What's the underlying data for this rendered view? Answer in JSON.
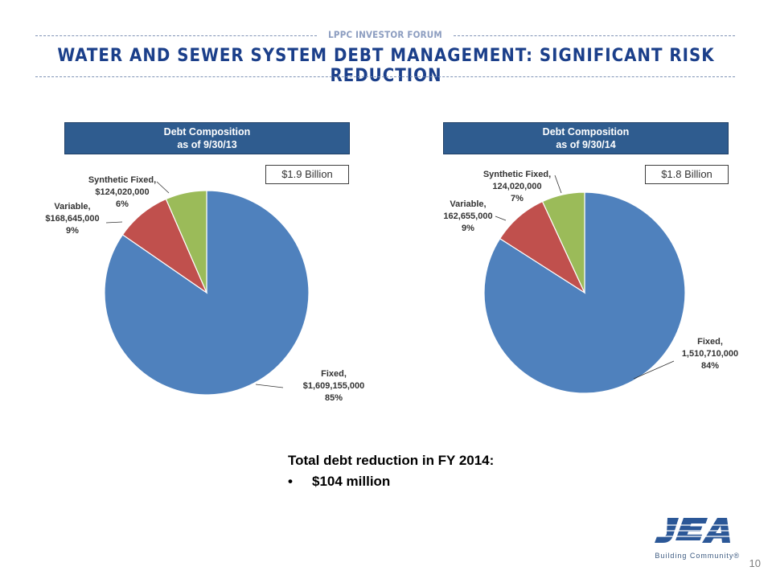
{
  "header": {
    "forum_label": "LPPC INVESTOR FORUM",
    "title": "WATER AND SEWER SYSTEM DEBT MANAGEMENT:  SIGNIFICANT RISK REDUCTION"
  },
  "chart_data": [
    {
      "type": "pie",
      "title_line1": "Debt Composition",
      "title_line2": "as of 9/30/13",
      "total_label": "$1.9 Billion",
      "start_angle_deg": 0,
      "colors": [
        "#4f81bd",
        "#c0504d",
        "#9bbb59"
      ],
      "slices": [
        {
          "name": "Fixed,",
          "value_label": "$1,609,155,000",
          "percent_label": "85%",
          "value": 1609155000
        },
        {
          "name": "Variable,",
          "value_label": "$168,645,000",
          "percent_label": "9%",
          "value": 168645000
        },
        {
          "name": "Synthetic Fixed,",
          "value_label": "$124,020,000",
          "percent_label": "6%",
          "value": 124020000
        }
      ]
    },
    {
      "type": "pie",
      "title_line1": "Debt Composition",
      "title_line2": "as of 9/30/14",
      "total_label": "$1.8 Billion",
      "start_angle_deg": 0,
      "colors": [
        "#4f81bd",
        "#c0504d",
        "#9bbb59"
      ],
      "slices": [
        {
          "name": "Fixed,",
          "value_label": "1,510,710,000",
          "percent_label": "84%",
          "value": 1510710000
        },
        {
          "name": "Variable,",
          "value_label": "162,655,000",
          "percent_label": "9%",
          "value": 162655000
        },
        {
          "name": "Synthetic Fixed,",
          "value_label": "124,020,000",
          "percent_label": "7%",
          "value": 124020000
        }
      ]
    }
  ],
  "summary": {
    "heading": "Total debt reduction in FY 2014:",
    "bullet_symbol": "•",
    "bullet_text": "$104 million"
  },
  "logo": {
    "name": "JEA",
    "tagline": "Building Community®",
    "color": "#2b5797"
  },
  "page_number": "10"
}
